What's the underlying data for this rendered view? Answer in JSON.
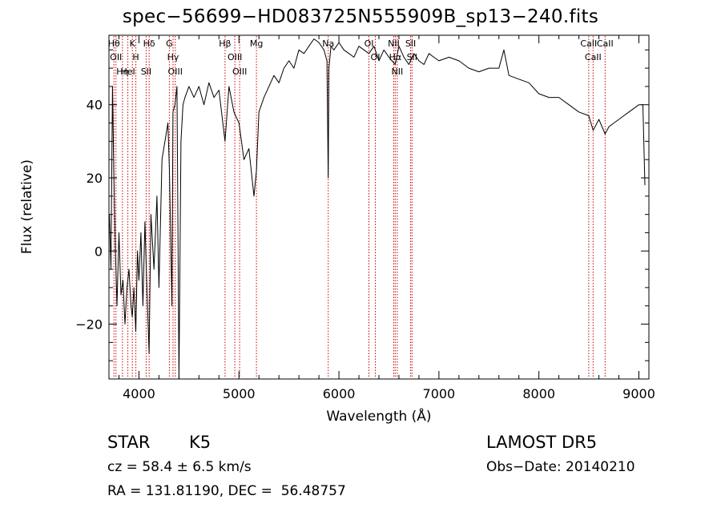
{
  "chart_data": {
    "type": "line",
    "title": "spec−56699−HD083725N555909B_sp13−240.fits",
    "xlabel": "Wavelength (Å)",
    "ylabel": "Flux (relative)",
    "xlim": [
      3700,
      9100
    ],
    "ylim": [
      -35,
      59
    ],
    "xticks": [
      4000,
      5000,
      6000,
      7000,
      8000,
      9000
    ],
    "xtick_labels": [
      "4000",
      "5000",
      "6000",
      "7000",
      "8000",
      "9000"
    ],
    "yticks": [
      -20,
      0,
      20,
      40
    ],
    "ytick_labels": [
      "−20",
      "0",
      "20",
      "40"
    ],
    "grid": false,
    "series": [
      {
        "x": [
          3705,
          3720,
          3735,
          3750,
          3765,
          3780,
          3800,
          3820,
          3840,
          3860,
          3880,
          3900,
          3920,
          3933,
          3950,
          3968,
          3985,
          4000,
          4020,
          4040,
          4060,
          4080,
          4101,
          4120,
          4150,
          4180,
          4200,
          4230,
          4260,
          4290,
          4305,
          4330,
          4340,
          4360,
          4380,
          4400,
          4420,
          4440,
          4460,
          4500,
          4550,
          4600,
          4650,
          4700,
          4750,
          4800,
          4861,
          4900,
          4950,
          5000,
          5050,
          5100,
          5150,
          5175,
          5200,
          5250,
          5300,
          5350,
          5400,
          5450,
          5500,
          5550,
          5600,
          5650,
          5700,
          5750,
          5800,
          5850,
          5880,
          5893,
          5900,
          5920,
          5950,
          6000,
          6050,
          6100,
          6150,
          6200,
          6250,
          6300,
          6350,
          6400,
          6450,
          6500,
          6563,
          6600,
          6650,
          6700,
          6750,
          6800,
          6850,
          6900,
          6950,
          7000,
          7100,
          7200,
          7300,
          7400,
          7500,
          7600,
          7650,
          7700,
          7800,
          7900,
          8000,
          8100,
          8200,
          8300,
          8400,
          8498,
          8542,
          8600,
          8662,
          8700,
          8750,
          8800,
          8850,
          8900,
          8950,
          9000,
          9040,
          9060
        ],
        "y": [
          10,
          -5,
          45,
          20,
          0,
          -15,
          5,
          -12,
          -8,
          -20,
          -10,
          -5,
          -15,
          -18,
          -10,
          -22,
          0,
          -8,
          5,
          -15,
          8,
          -10,
          -28,
          10,
          -5,
          15,
          -10,
          25,
          30,
          35,
          22,
          -15,
          38,
          40,
          45,
          -35,
          30,
          40,
          42,
          45,
          42,
          45,
          40,
          46,
          42,
          44,
          30,
          45,
          38,
          35,
          25,
          28,
          15,
          22,
          38,
          42,
          45,
          48,
          46,
          50,
          52,
          50,
          55,
          54,
          56,
          58,
          57,
          55,
          52,
          20,
          50,
          56,
          55,
          57,
          55,
          54,
          53,
          56,
          55,
          54,
          56,
          52,
          55,
          53,
          51,
          56,
          53,
          51,
          54,
          52,
          51,
          54,
          53,
          52,
          53,
          52,
          50,
          49,
          50,
          50,
          55,
          48,
          47,
          46,
          43,
          42,
          42,
          40,
          38,
          37,
          33,
          36,
          32,
          34,
          35,
          36,
          37,
          38,
          39,
          40,
          40,
          18
        ]
      }
    ],
    "lines": [
      {
        "x": 3750,
        "labels": [
          "Hθ"
        ]
      },
      {
        "x": 3770,
        "labels": [
          "OII"
        ]
      },
      {
        "x": 3835,
        "labels": [
          "Hη"
        ]
      },
      {
        "x": 3889,
        "labels": [
          "HeI"
        ]
      },
      {
        "x": 3934,
        "labels": [
          "K"
        ]
      },
      {
        "x": 3969,
        "labels": [
          "H"
        ]
      },
      {
        "x": 4072,
        "labels": [
          "SII"
        ]
      },
      {
        "x": 4102,
        "labels": [
          "Hδ"
        ]
      },
      {
        "x": 4304,
        "labels": [
          "G"
        ]
      },
      {
        "x": 4341,
        "labels": [
          "Hγ"
        ]
      },
      {
        "x": 4363,
        "labels": [
          "OIII"
        ]
      },
      {
        "x": 4861,
        "labels": [
          "Hβ"
        ]
      },
      {
        "x": 4959,
        "labels": [
          "OIII"
        ]
      },
      {
        "x": 5007,
        "labels": [
          "OIII"
        ]
      },
      {
        "x": 5175,
        "labels": [
          "Mg"
        ]
      },
      {
        "x": 5893,
        "labels": [
          "Na"
        ]
      },
      {
        "x": 6300,
        "labels": [
          "OI"
        ]
      },
      {
        "x": 6364,
        "labels": [
          "OI"
        ]
      },
      {
        "x": 6548,
        "labels": [
          "NII"
        ]
      },
      {
        "x": 6563,
        "labels": [
          "Hα"
        ]
      },
      {
        "x": 6583,
        "labels": [
          "NII"
        ]
      },
      {
        "x": 6717,
        "labels": [
          "SII"
        ]
      },
      {
        "x": 6731,
        "labels": [
          "SII"
        ]
      },
      {
        "x": 8498,
        "labels": [
          "CaII"
        ]
      },
      {
        "x": 8542,
        "labels": [
          "CaII"
        ]
      },
      {
        "x": 8662,
        "labels": [
          "CaII"
        ]
      }
    ]
  },
  "info": {
    "object_class": "STAR",
    "subclass": "K5",
    "survey": "LAMOST DR5",
    "redshift": "cz = 58.4 ± 6.5 km/s",
    "obs_date": "Obs−Date: 20140210",
    "coords": "RA = 131.81190, DEC =  56.48757"
  },
  "colors": {
    "spectrum": "#000000",
    "line_marker": "#cc0000",
    "axes": "#000000",
    "background": "#ffffff"
  }
}
